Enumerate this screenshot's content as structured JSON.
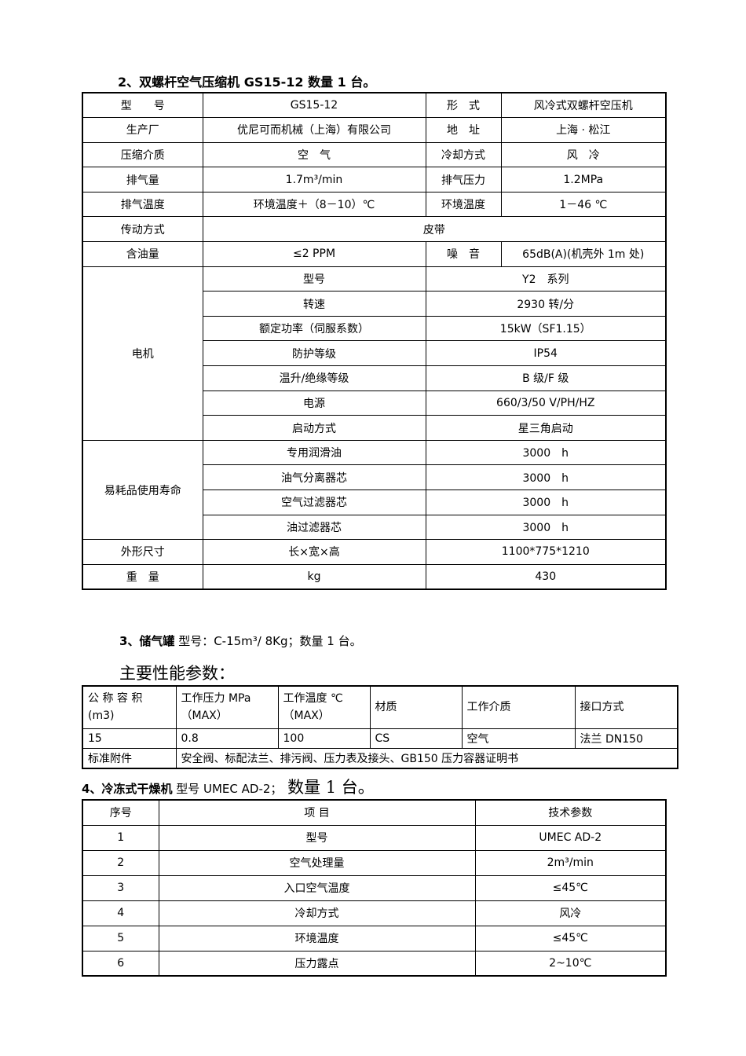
{
  "section2": {
    "title": "2、双螺杆空气压缩机 GS15-12  数量 1 台。",
    "rows": [
      [
        "型　　号",
        "GS15-12",
        "形　式",
        "风冷式双螺杆空压机"
      ],
      [
        "生产厂",
        "优尼可而机械（上海）有限公司",
        "地　址",
        "上海 · 松江"
      ],
      [
        "压缩介质",
        "空　气",
        "冷却方式",
        "风　冷"
      ],
      [
        "排气量",
        "1.7m³/min",
        "排气压力",
        "1.2MPa"
      ],
      [
        "排气温度",
        "环境温度＋（8－10）℃",
        "环境温度",
        "1－46 ℃"
      ]
    ],
    "transmission": [
      "传动方式",
      "皮带"
    ],
    "oil": [
      "含油量",
      "≤2 PPM",
      "噪　音",
      "65dB(A)(机壳外 1m 处)"
    ],
    "motor": {
      "label": "电机",
      "rows": [
        [
          "型号",
          "Y2　系列"
        ],
        [
          "转速",
          "2930 转/分"
        ],
        [
          "额定功率（伺服系数）",
          "15kW（SF1.15）"
        ],
        [
          "防护等级",
          "IP54"
        ],
        [
          "温升/绝缘等级",
          "B 级/F 级"
        ],
        [
          "电源",
          "660/3/50  V/PH/HZ"
        ],
        [
          "启动方式",
          "星三角启动"
        ]
      ]
    },
    "consumables": {
      "label": "易耗品使用寿命",
      "rows": [
        [
          "专用润滑油",
          "3000　h"
        ],
        [
          "油气分离器芯",
          "3000　h"
        ],
        [
          "空气过滤器芯",
          "3000　h"
        ],
        [
          "油过滤器芯",
          "3000　h"
        ]
      ]
    },
    "size": [
      "外形尺寸",
      "长×宽×高",
      "1100*775*1210"
    ],
    "weight": [
      "重　量",
      "kg",
      "430"
    ]
  },
  "section3": {
    "title_bold": "3、储气罐",
    "title_rest": "  型号：C-15m³/ 8Kg；数量 1 台。",
    "subtitle": "主要性能参数：",
    "headers": [
      "公 称 容 积 (m3)",
      "工作压力 MPa （MAX）",
      "工作温度 ℃（MAX）",
      "材质",
      "工作介质",
      "接口方式"
    ],
    "values": [
      "15",
      "0.8",
      "100",
      "CS",
      "空气",
      "法兰 DN150"
    ],
    "accessories": [
      "标准附件",
      "安全阀、标配法兰、排污阀、压力表及接头、GB150 压力容器证明书"
    ]
  },
  "section4": {
    "title_bold": "4、冷冻式干燥机",
    "title_rest": " 型号 UMEC AD-2；",
    "title_big": " 数量 1 台。",
    "headers": [
      "序号",
      "项 目",
      "技术参数"
    ],
    "rows": [
      [
        "1",
        "型号",
        "UMEC AD-2"
      ],
      [
        "2",
        "空气处理量",
        "2m³/min"
      ],
      [
        "3",
        "入口空气温度",
        "≤45℃"
      ],
      [
        "4",
        "冷却方式",
        "风冷"
      ],
      [
        "5",
        "环境温度",
        "≤45℃"
      ],
      [
        "6",
        "压力露点",
        "2~10℃"
      ]
    ]
  }
}
